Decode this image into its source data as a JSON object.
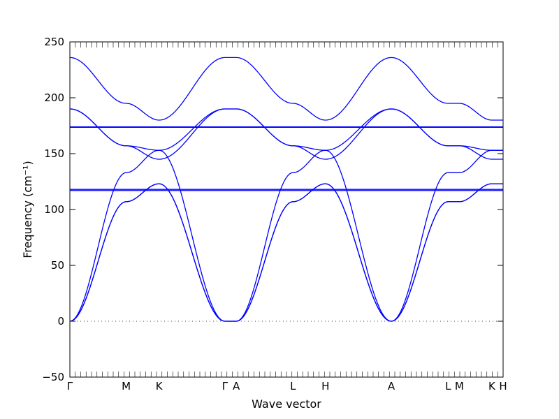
{
  "chart_data": {
    "type": "line",
    "title": "",
    "xlabel": "Wave vector",
    "ylabel": "Frequency (cm⁻¹)",
    "ylim": [
      -50,
      250
    ],
    "yticks": [
      -50,
      0,
      50,
      100,
      150,
      200,
      250
    ],
    "ytick_labels": [
      "−50",
      "0",
      "50",
      "100",
      "150",
      "200",
      "250"
    ],
    "xlim": [
      0,
      1
    ],
    "xticks": [
      {
        "label": "Γ",
        "x": 0.0
      },
      {
        "label": "M",
        "x": 0.13
      },
      {
        "label": "K",
        "x": 0.206
      },
      {
        "label": "Γ",
        "x": 0.358
      },
      {
        "label": "A",
        "x": 0.384
      },
      {
        "label": "L",
        "x": 0.515
      },
      {
        "label": "H",
        "x": 0.59
      },
      {
        "label": "A",
        "x": 0.742
      },
      {
        "label": "L",
        "x": 0.873
      },
      {
        "label": "M",
        "x": 0.899
      },
      {
        "label": "K",
        "x": 0.974
      },
      {
        "label": "H",
        "x": 1.0
      }
    ],
    "zero_line": {
      "y": 0,
      "style": "dotted"
    },
    "line_color": "#0000ff",
    "series": [
      {
        "x": [
          0,
          0.13,
          0.206,
          0.358,
          0.384,
          0.515,
          0.59,
          0.742,
          0.873,
          0.899,
          0.974,
          1.0
        ],
        "y": [
          236,
          195,
          180,
          236,
          236,
          195,
          180,
          236,
          195,
          195,
          180,
          180
        ]
      },
      {
        "x": [
          0,
          0.13,
          0.206,
          0.358,
          0.384,
          0.515,
          0.59,
          0.742,
          0.873,
          0.899,
          0.974,
          1.0
        ],
        "y": [
          190,
          157,
          145,
          190,
          190,
          157,
          145,
          190,
          157,
          157,
          145,
          145
        ]
      },
      {
        "x": [
          0,
          0.13,
          0.206,
          0.358,
          0.384,
          0.515,
          0.59,
          0.742,
          0.873,
          0.899,
          0.974,
          1.0
        ],
        "y": [
          190,
          157,
          153,
          190,
          190,
          157,
          153,
          190,
          157,
          157,
          153,
          153
        ]
      },
      {
        "x": [
          0,
          1.0
        ],
        "y": [
          173.5,
          173.5
        ]
      },
      {
        "x": [
          0,
          1.0
        ],
        "y": [
          174,
          174
        ]
      },
      {
        "x": [
          0,
          0.13,
          0.206,
          0.358,
          0.384,
          0.515,
          0.59,
          0.742,
          0.873,
          0.899,
          0.974,
          1.0
        ],
        "y": [
          0,
          133,
          153,
          0,
          0,
          133,
          153,
          0,
          133,
          133,
          153,
          153
        ]
      },
      {
        "x": [
          0,
          0.13,
          0.206,
          0.358,
          0.384,
          0.515,
          0.59,
          0.742,
          0.873,
          0.899,
          0.974,
          1.0
        ],
        "y": [
          0,
          107,
          123,
          0,
          0,
          107,
          123,
          0,
          107,
          107,
          123,
          123
        ]
      },
      {
        "x": [
          0,
          0.13,
          0.206,
          0.358,
          0.384,
          0.515,
          0.59,
          0.742,
          0.873,
          0.899,
          0.974,
          1.0
        ],
        "y": [
          0,
          107,
          123,
          0,
          0,
          107,
          123,
          0,
          107,
          107,
          123,
          123
        ]
      },
      {
        "x": [
          0,
          1.0
        ],
        "y": [
          117,
          117
        ]
      },
      {
        "x": [
          0,
          1.0
        ],
        "y": [
          118,
          118
        ]
      }
    ]
  }
}
